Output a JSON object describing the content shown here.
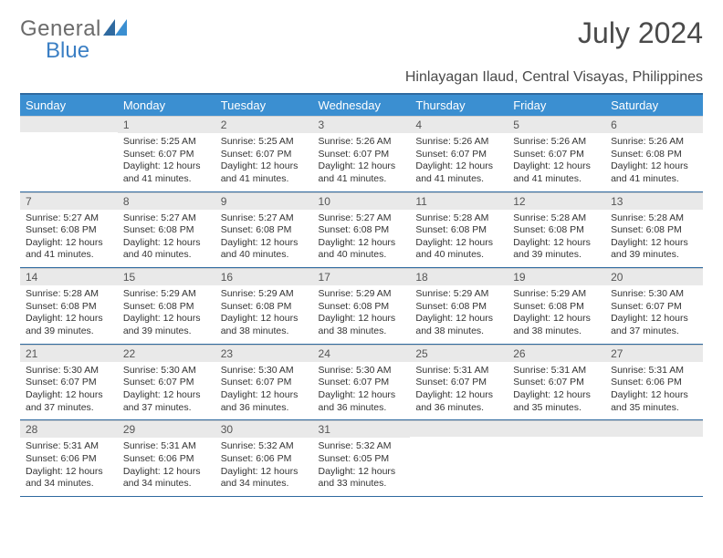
{
  "brand": {
    "line1": "General",
    "line2": "Blue"
  },
  "title": "July 2024",
  "location": "Hinlayagan Ilaud, Central Visayas, Philippines",
  "colors": {
    "header_bg": "#3b8fd1",
    "header_border": "#2f6aa0",
    "daynum_bg": "#e9e9e9",
    "brand_gray": "#6b6b6b",
    "brand_blue": "#3b7fc4"
  },
  "weekdays": [
    "Sunday",
    "Monday",
    "Tuesday",
    "Wednesday",
    "Thursday",
    "Friday",
    "Saturday"
  ],
  "weeks": [
    [
      {
        "n": "",
        "sr": "",
        "ss": "",
        "dl": ""
      },
      {
        "n": "1",
        "sr": "Sunrise: 5:25 AM",
        "ss": "Sunset: 6:07 PM",
        "dl": "Daylight: 12 hours and 41 minutes."
      },
      {
        "n": "2",
        "sr": "Sunrise: 5:25 AM",
        "ss": "Sunset: 6:07 PM",
        "dl": "Daylight: 12 hours and 41 minutes."
      },
      {
        "n": "3",
        "sr": "Sunrise: 5:26 AM",
        "ss": "Sunset: 6:07 PM",
        "dl": "Daylight: 12 hours and 41 minutes."
      },
      {
        "n": "4",
        "sr": "Sunrise: 5:26 AM",
        "ss": "Sunset: 6:07 PM",
        "dl": "Daylight: 12 hours and 41 minutes."
      },
      {
        "n": "5",
        "sr": "Sunrise: 5:26 AM",
        "ss": "Sunset: 6:07 PM",
        "dl": "Daylight: 12 hours and 41 minutes."
      },
      {
        "n": "6",
        "sr": "Sunrise: 5:26 AM",
        "ss": "Sunset: 6:08 PM",
        "dl": "Daylight: 12 hours and 41 minutes."
      }
    ],
    [
      {
        "n": "7",
        "sr": "Sunrise: 5:27 AM",
        "ss": "Sunset: 6:08 PM",
        "dl": "Daylight: 12 hours and 41 minutes."
      },
      {
        "n": "8",
        "sr": "Sunrise: 5:27 AM",
        "ss": "Sunset: 6:08 PM",
        "dl": "Daylight: 12 hours and 40 minutes."
      },
      {
        "n": "9",
        "sr": "Sunrise: 5:27 AM",
        "ss": "Sunset: 6:08 PM",
        "dl": "Daylight: 12 hours and 40 minutes."
      },
      {
        "n": "10",
        "sr": "Sunrise: 5:27 AM",
        "ss": "Sunset: 6:08 PM",
        "dl": "Daylight: 12 hours and 40 minutes."
      },
      {
        "n": "11",
        "sr": "Sunrise: 5:28 AM",
        "ss": "Sunset: 6:08 PM",
        "dl": "Daylight: 12 hours and 40 minutes."
      },
      {
        "n": "12",
        "sr": "Sunrise: 5:28 AM",
        "ss": "Sunset: 6:08 PM",
        "dl": "Daylight: 12 hours and 39 minutes."
      },
      {
        "n": "13",
        "sr": "Sunrise: 5:28 AM",
        "ss": "Sunset: 6:08 PM",
        "dl": "Daylight: 12 hours and 39 minutes."
      }
    ],
    [
      {
        "n": "14",
        "sr": "Sunrise: 5:28 AM",
        "ss": "Sunset: 6:08 PM",
        "dl": "Daylight: 12 hours and 39 minutes."
      },
      {
        "n": "15",
        "sr": "Sunrise: 5:29 AM",
        "ss": "Sunset: 6:08 PM",
        "dl": "Daylight: 12 hours and 39 minutes."
      },
      {
        "n": "16",
        "sr": "Sunrise: 5:29 AM",
        "ss": "Sunset: 6:08 PM",
        "dl": "Daylight: 12 hours and 38 minutes."
      },
      {
        "n": "17",
        "sr": "Sunrise: 5:29 AM",
        "ss": "Sunset: 6:08 PM",
        "dl": "Daylight: 12 hours and 38 minutes."
      },
      {
        "n": "18",
        "sr": "Sunrise: 5:29 AM",
        "ss": "Sunset: 6:08 PM",
        "dl": "Daylight: 12 hours and 38 minutes."
      },
      {
        "n": "19",
        "sr": "Sunrise: 5:29 AM",
        "ss": "Sunset: 6:08 PM",
        "dl": "Daylight: 12 hours and 38 minutes."
      },
      {
        "n": "20",
        "sr": "Sunrise: 5:30 AM",
        "ss": "Sunset: 6:07 PM",
        "dl": "Daylight: 12 hours and 37 minutes."
      }
    ],
    [
      {
        "n": "21",
        "sr": "Sunrise: 5:30 AM",
        "ss": "Sunset: 6:07 PM",
        "dl": "Daylight: 12 hours and 37 minutes."
      },
      {
        "n": "22",
        "sr": "Sunrise: 5:30 AM",
        "ss": "Sunset: 6:07 PM",
        "dl": "Daylight: 12 hours and 37 minutes."
      },
      {
        "n": "23",
        "sr": "Sunrise: 5:30 AM",
        "ss": "Sunset: 6:07 PM",
        "dl": "Daylight: 12 hours and 36 minutes."
      },
      {
        "n": "24",
        "sr": "Sunrise: 5:30 AM",
        "ss": "Sunset: 6:07 PM",
        "dl": "Daylight: 12 hours and 36 minutes."
      },
      {
        "n": "25",
        "sr": "Sunrise: 5:31 AM",
        "ss": "Sunset: 6:07 PM",
        "dl": "Daylight: 12 hours and 36 minutes."
      },
      {
        "n": "26",
        "sr": "Sunrise: 5:31 AM",
        "ss": "Sunset: 6:07 PM",
        "dl": "Daylight: 12 hours and 35 minutes."
      },
      {
        "n": "27",
        "sr": "Sunrise: 5:31 AM",
        "ss": "Sunset: 6:06 PM",
        "dl": "Daylight: 12 hours and 35 minutes."
      }
    ],
    [
      {
        "n": "28",
        "sr": "Sunrise: 5:31 AM",
        "ss": "Sunset: 6:06 PM",
        "dl": "Daylight: 12 hours and 34 minutes."
      },
      {
        "n": "29",
        "sr": "Sunrise: 5:31 AM",
        "ss": "Sunset: 6:06 PM",
        "dl": "Daylight: 12 hours and 34 minutes."
      },
      {
        "n": "30",
        "sr": "Sunrise: 5:32 AM",
        "ss": "Sunset: 6:06 PM",
        "dl": "Daylight: 12 hours and 34 minutes."
      },
      {
        "n": "31",
        "sr": "Sunrise: 5:32 AM",
        "ss": "Sunset: 6:05 PM",
        "dl": "Daylight: 12 hours and 33 minutes."
      },
      {
        "n": "",
        "sr": "",
        "ss": "",
        "dl": ""
      },
      {
        "n": "",
        "sr": "",
        "ss": "",
        "dl": ""
      },
      {
        "n": "",
        "sr": "",
        "ss": "",
        "dl": ""
      }
    ]
  ]
}
